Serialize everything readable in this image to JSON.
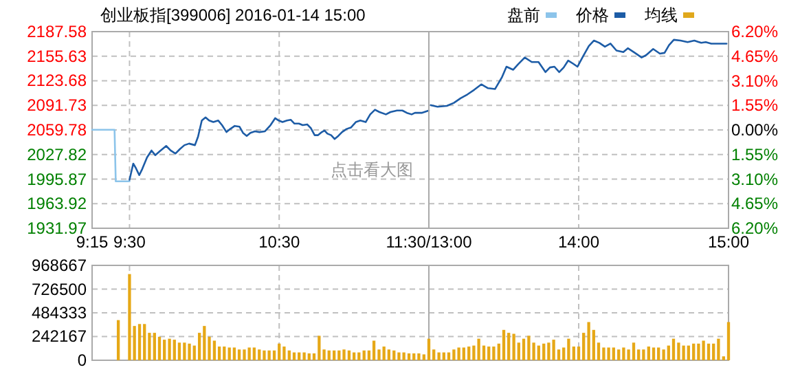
{
  "chart_data": [
    {
      "type": "line",
      "title": "创业板指[399006] 2016-01-14 15:00",
      "xlim": [
        9.25,
        11.5
      ],
      "xticks": [
        {
          "value": 9.25,
          "label": "9:15"
        },
        {
          "value": 9.5,
          "label": "9:30"
        },
        {
          "value": 10.5,
          "label": "10:30"
        },
        {
          "value": 11.5,
          "label": "11:30/13:00"
        }
      ],
      "ylim": [
        1931.97,
        2187.58
      ],
      "yticks": [
        1931.97,
        1963.92,
        1995.87,
        2027.82,
        2059.78,
        2091.73,
        2123.68,
        2155.63,
        2187.58
      ],
      "grid": true,
      "annotations": [
        "点击看大图"
      ],
      "series": [
        {
          "color": "#8cc4ea",
          "x": [
            9.25,
            9.4,
            9.408,
            9.5
          ],
          "values": [
            2060,
            2060,
            1993,
            1993
          ]
        },
        {
          "color": "#1d5ca6",
          "x": [
            9.5,
            9.525,
            9.543,
            9.565,
            9.585,
            9.617,
            9.647,
            9.672,
            9.702,
            9.745,
            9.775,
            9.807,
            9.837,
            9.867,
            9.898,
            9.937,
            9.958,
            9.983,
            10.008,
            10.032,
            10.06,
            10.093,
            10.118,
            10.148,
            10.173,
            10.203,
            10.235,
            10.258,
            10.283,
            10.308,
            10.338,
            10.368,
            10.405,
            10.442,
            10.473,
            10.497,
            10.522,
            10.552,
            10.577,
            10.602,
            10.632,
            10.657,
            10.687,
            10.712,
            10.737,
            10.76,
            10.785,
            10.803,
            10.822,
            10.847,
            10.87,
            10.895,
            10.92,
            10.95,
            10.98,
            11.012,
            11.042,
            11.078,
            11.108,
            11.14,
            11.17,
            11.213,
            11.243,
            11.287,
            11.323,
            11.353,
            11.385,
            11.407,
            11.452,
            11.5
          ],
          "values": [
            1995,
            2016,
            2010,
            2001,
            2009,
            2024,
            2033,
            2027,
            2032,
            2039,
            2033,
            2029,
            2035,
            2040,
            2042,
            2040,
            2051,
            2072,
            2076,
            2072,
            2070,
            2072,
            2066,
            2057,
            2061,
            2065,
            2064,
            2056,
            2052,
            2056,
            2058,
            2057,
            2058,
            2066,
            2075,
            2072,
            2070,
            2072,
            2073,
            2068,
            2068,
            2066,
            2067,
            2062,
            2053,
            2053,
            2057,
            2059,
            2055,
            2053,
            2048,
            2052,
            2057,
            2061,
            2063,
            2070,
            2072,
            2070,
            2080,
            2086,
            2083,
            2080,
            2083,
            2085,
            2085,
            2082,
            2080,
            2082,
            2082,
            2085
          ]
        }
      ]
    },
    {
      "type": "line",
      "tick_labels": "x",
      "xlim": [
        13,
        15
      ],
      "xticks": [
        {
          "value": 13,
          "label": null
        },
        {
          "value": 14,
          "label": "14:00"
        },
        {
          "value": 15,
          "label": "15:00"
        }
      ],
      "ylim": [
        1931.97,
        2187.58
      ],
      "yticks": [
        1931.97,
        1963.92,
        1995.87,
        2027.82,
        2059.78,
        2091.73,
        2123.68,
        2155.63,
        2187.58
      ],
      "y2lim": [
        -6.2,
        6.2
      ],
      "y2ticks": [
        {
          "value": -6.2,
          "label": "6.20%"
        },
        {
          "value": -4.65,
          "label": "4.65%"
        },
        {
          "value": -3.1,
          "label": "3.10%"
        },
        {
          "value": -1.55,
          "label": "1.55%"
        },
        {
          "value": 0,
          "label": "0.00%"
        },
        {
          "value": 1.55,
          "label": "1.55%"
        },
        {
          "value": 3.1,
          "label": "3.10%"
        },
        {
          "value": 4.65,
          "label": "4.65%"
        },
        {
          "value": 6.2,
          "label": "6.20%"
        }
      ],
      "grid": true,
      "legend": "top right",
      "series": [
        {
          "name": "盘前",
          "color": "#8cc4ea"
        },
        {
          "name": "价格",
          "color": "#1d5ca6",
          "x": [
            13.013,
            13.058,
            13.12,
            13.167,
            13.212,
            13.258,
            13.303,
            13.35,
            13.395,
            13.442,
            13.487,
            13.518,
            13.563,
            13.595,
            13.64,
            13.687,
            13.732,
            13.778,
            13.808,
            13.838,
            13.87,
            13.9,
            13.93,
            13.962,
            13.992,
            14.028,
            14.068,
            14.102,
            14.138,
            14.175,
            14.212,
            14.252,
            14.298,
            14.328,
            14.375,
            14.42,
            14.45,
            14.497,
            14.542,
            14.573,
            14.603,
            14.635,
            14.68,
            14.727,
            14.772,
            14.818,
            14.848,
            14.885,
            14.925,
            14.987
          ],
          "values": [
            2092,
            2090,
            2091,
            2095,
            2101,
            2106,
            2112,
            2119,
            2114,
            2113,
            2128,
            2142,
            2138,
            2145,
            2154,
            2148,
            2148,
            2135,
            2141,
            2142,
            2135,
            2141,
            2150,
            2146,
            2142,
            2155,
            2169,
            2176,
            2173,
            2168,
            2172,
            2163,
            2161,
            2166,
            2160,
            2154,
            2157,
            2165,
            2159,
            2160,
            2170,
            2177,
            2176,
            2174,
            2176,
            2173,
            2174,
            2172,
            2172,
            2172
          ]
        },
        {
          "name": "均线",
          "color": "#e0a81c"
        }
      ]
    },
    {
      "type": "bar",
      "color": "#e6a817",
      "tick_labels": "y",
      "grid": true,
      "xlim": [
        9.25,
        11.5
      ],
      "xticks": [
        {
          "value": 9.5,
          "label": null
        },
        {
          "value": 10.5,
          "label": null
        }
      ],
      "ylim": [
        0,
        968667
      ],
      "yticks": [
        0,
        242167,
        484333,
        726500,
        968667
      ],
      "x": [
        9.425,
        9.5,
        9.533,
        9.567,
        9.6,
        9.633,
        9.667,
        9.7,
        9.733,
        9.767,
        9.8,
        9.833,
        9.867,
        9.9,
        9.933,
        9.967,
        10,
        10.033,
        10.067,
        10.1,
        10.133,
        10.167,
        10.2,
        10.233,
        10.267,
        10.3,
        10.333,
        10.367,
        10.4,
        10.433,
        10.467,
        10.5,
        10.533,
        10.567,
        10.6,
        10.633,
        10.667,
        10.7,
        10.733,
        10.767,
        10.8,
        10.833,
        10.867,
        10.9,
        10.933,
        10.967,
        11,
        11.033,
        11.067,
        11.1,
        11.133,
        11.167,
        11.2,
        11.233,
        11.267,
        11.3,
        11.333,
        11.367,
        11.4,
        11.433,
        11.467
      ],
      "values": [
        410000,
        880000,
        350000,
        370000,
        370000,
        280000,
        280000,
        240000,
        210000,
        220000,
        210000,
        180000,
        180000,
        170000,
        150000,
        280000,
        350000,
        240000,
        200000,
        140000,
        140000,
        130000,
        130000,
        110000,
        110000,
        130000,
        130000,
        110000,
        100000,
        100000,
        100000,
        170000,
        140000,
        100000,
        80000,
        80000,
        80000,
        70000,
        70000,
        250000,
        110000,
        100000,
        100000,
        100000,
        110000,
        100000,
        80000,
        80000,
        100000,
        100000,
        200000,
        110000,
        140000,
        110000,
        100000,
        80000,
        80000,
        70000,
        70000,
        70000,
        60000
      ]
    },
    {
      "type": "bar",
      "color": "#e6a817",
      "tick_labels": false,
      "grid": true,
      "xlim": [
        13,
        15
      ],
      "xticks": [
        {
          "value": 13,
          "label": null
        },
        {
          "value": 14,
          "label": null
        },
        {
          "value": 15,
          "label": null
        }
      ],
      "ylim": [
        0,
        968667
      ],
      "yticks": [
        0,
        242167,
        484333,
        726500,
        968667
      ],
      "x": [
        13,
        13.033,
        13.067,
        13.1,
        13.133,
        13.167,
        13.2,
        13.233,
        13.267,
        13.3,
        13.333,
        13.367,
        13.4,
        13.433,
        13.467,
        13.5,
        13.533,
        13.567,
        13.6,
        13.633,
        13.667,
        13.7,
        13.733,
        13.767,
        13.8,
        13.833,
        13.867,
        13.9,
        13.933,
        13.967,
        14,
        14.033,
        14.067,
        14.1,
        14.133,
        14.167,
        14.2,
        14.233,
        14.267,
        14.3,
        14.333,
        14.367,
        14.4,
        14.433,
        14.467,
        14.5,
        14.533,
        14.567,
        14.6,
        14.633,
        14.667,
        14.7,
        14.733,
        14.767,
        14.8,
        14.833,
        14.867,
        14.9,
        14.933,
        14.967,
        15
      ],
      "values": [
        220000,
        110000,
        80000,
        80000,
        80000,
        110000,
        130000,
        130000,
        140000,
        150000,
        220000,
        150000,
        140000,
        140000,
        170000,
        310000,
        280000,
        270000,
        180000,
        220000,
        250000,
        180000,
        150000,
        170000,
        180000,
        210000,
        110000,
        130000,
        220000,
        140000,
        140000,
        280000,
        390000,
        310000,
        180000,
        130000,
        130000,
        130000,
        110000,
        130000,
        110000,
        180000,
        110000,
        110000,
        140000,
        130000,
        130000,
        110000,
        150000,
        220000,
        180000,
        150000,
        150000,
        170000,
        170000,
        200000,
        170000,
        170000,
        220000,
        40000,
        390000
      ]
    }
  ]
}
